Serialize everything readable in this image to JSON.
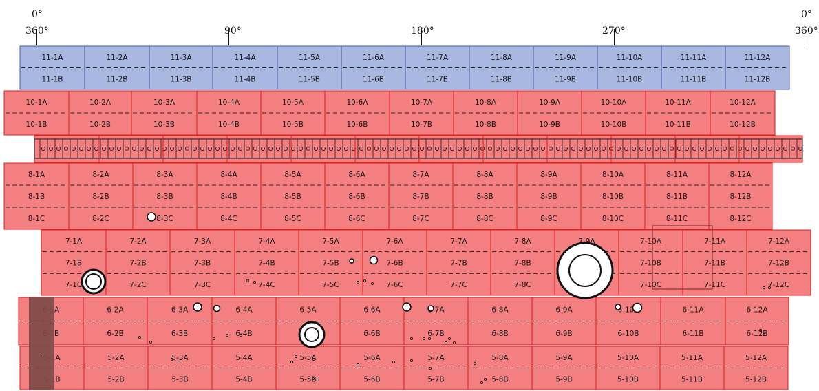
{
  "angle_labels": [
    "0°",
    "360°",
    "90°",
    "180°",
    "270°",
    "0°",
    "360°"
  ],
  "colors": {
    "blue_fill": "#a8b8e0",
    "blue_border": "#4a5aa0",
    "red_fill": "#f47f80",
    "red_border": "#e01f1f",
    "dark_band": "#7d4a46",
    "text": "#1a1a1a"
  },
  "tiers": [
    {
      "id": "11",
      "cells": [
        {
          "labels": [
            "11-1A",
            "11-1B"
          ]
        },
        {
          "labels": [
            "11-2A",
            "11-2B"
          ]
        },
        {
          "labels": [
            "11-3A",
            "11-3B"
          ]
        },
        {
          "labels": [
            "11-4A",
            "11-4B"
          ]
        },
        {
          "labels": [
            "11-5A",
            "11-5B"
          ]
        },
        {
          "labels": [
            "11-6A",
            "11-6B"
          ]
        },
        {
          "labels": [
            "11-7A",
            "11-7B"
          ]
        },
        {
          "labels": [
            "11-8A",
            "11-8B"
          ]
        },
        {
          "labels": [
            "11-9A",
            "11-9B"
          ]
        },
        {
          "labels": [
            "11-10A",
            "11-10B"
          ]
        },
        {
          "labels": [
            "11-11A",
            "11-11B"
          ]
        },
        {
          "labels": [
            "11-12A",
            "11-12B"
          ]
        }
      ]
    },
    {
      "id": "10",
      "cells": [
        {
          "labels": [
            "10-1A",
            "10-1B"
          ]
        },
        {
          "labels": [
            "10-2A",
            "10-2B"
          ]
        },
        {
          "labels": [
            "10-3A",
            "10-3B"
          ]
        },
        {
          "labels": [
            "10-4A",
            "10-4B"
          ]
        },
        {
          "labels": [
            "10-5A",
            "10-5B"
          ]
        },
        {
          "labels": [
            "10-6A",
            "10-6B"
          ]
        },
        {
          "labels": [
            "10-7A",
            "10-7B"
          ]
        },
        {
          "labels": [
            "10-8A",
            "10-8B"
          ]
        },
        {
          "labels": [
            "10-9A",
            "10-9B"
          ]
        },
        {
          "labels": [
            "10-10A",
            "10-10B"
          ]
        },
        {
          "labels": [
            "10-11A",
            "10-11B"
          ]
        },
        {
          "labels": [
            "10-12A",
            "10-12B"
          ]
        }
      ]
    },
    {
      "id": "8",
      "cells": [
        {
          "labels": [
            "8-1A",
            "8-1B",
            "8-1C"
          ]
        },
        {
          "labels": [
            "8-2A",
            "8-2B",
            "8-2C"
          ]
        },
        {
          "labels": [
            "8-3A",
            "8-3B",
            "8-3C"
          ]
        },
        {
          "labels": [
            "8-4A",
            "8-4B",
            "8-4C"
          ]
        },
        {
          "labels": [
            "8-5A",
            "8-5B",
            "8-5C"
          ]
        },
        {
          "labels": [
            "8-6A",
            "8-6B",
            "8-6C"
          ]
        },
        {
          "labels": [
            "8-7A",
            "8-7B",
            "8-7C"
          ]
        },
        {
          "labels": [
            "8-8A",
            "8-8B",
            "8-8C"
          ]
        },
        {
          "labels": [
            "8-9A",
            "8-9B",
            "8-9C"
          ]
        },
        {
          "labels": [
            "8-10A",
            "8-10B",
            "8-10C"
          ]
        },
        {
          "labels": [
            "8-11A",
            "8-11B",
            "8-11C"
          ]
        },
        {
          "labels": [
            "8-12A",
            "8-12B",
            "8-12C"
          ]
        }
      ]
    },
    {
      "id": "7",
      "cells": [
        {
          "labels": [
            "7-1A",
            "7-1B",
            "7-1C"
          ]
        },
        {
          "labels": [
            "7-2A",
            "7-2B",
            "7-2C"
          ]
        },
        {
          "labels": [
            "7-3A",
            "7-3B",
            "7-3C"
          ]
        },
        {
          "labels": [
            "7-4A",
            "7-4B",
            "7-4C"
          ]
        },
        {
          "labels": [
            "7-5A",
            "7-5B",
            "7-5C"
          ]
        },
        {
          "labels": [
            "7-6A",
            "7-6B",
            "7-6C"
          ]
        },
        {
          "labels": [
            "7-7A",
            "7-7B",
            "7-7C"
          ]
        },
        {
          "labels": [
            "7-8A",
            "7-8B",
            "7-8C"
          ]
        },
        {
          "labels": [
            "7-9A",
            "",
            ""
          ]
        },
        {
          "labels": [
            "7-10A",
            "7-10B",
            "7-10C"
          ]
        },
        {
          "labels": [
            "7-11A",
            "7-11B",
            "7-11C"
          ]
        },
        {
          "labels": [
            "7-12A",
            "7-12B",
            "7-12C"
          ]
        }
      ]
    },
    {
      "id": "6",
      "cells": [
        {
          "labels": [
            "6-1A",
            "6-1B"
          ]
        },
        {
          "labels": [
            "6-2A",
            "6-2B"
          ]
        },
        {
          "labels": [
            "6-3A",
            "6-3B"
          ]
        },
        {
          "labels": [
            "6-4A",
            "6-4B"
          ]
        },
        {
          "labels": [
            "6-5A",
            "6"
          ]
        },
        {
          "labels": [
            "6-6A",
            "6-6B"
          ]
        },
        {
          "labels": [
            "6-7A",
            "6-7B"
          ]
        },
        {
          "labels": [
            "6-8A",
            "6-8B"
          ]
        },
        {
          "labels": [
            "6-9A",
            "6-9B"
          ]
        },
        {
          "labels": [
            "6-10A",
            "6-10B"
          ]
        },
        {
          "labels": [
            "6-11A",
            "6-11B"
          ]
        },
        {
          "labels": [
            "6-12A",
            "6-12B"
          ]
        }
      ]
    },
    {
      "id": "5",
      "cells": [
        {
          "labels": [
            "5-1A",
            "5-1B"
          ]
        },
        {
          "labels": [
            "5-2A",
            "5-2B"
          ]
        },
        {
          "labels": [
            "5-3A",
            "5-3B"
          ]
        },
        {
          "labels": [
            "5-4A",
            "5-4B"
          ]
        },
        {
          "labels": [
            "5-5A",
            "5-5B"
          ]
        },
        {
          "labels": [
            "5-6A",
            "5-6B"
          ]
        },
        {
          "labels": [
            "5-7A",
            "5-7B"
          ]
        },
        {
          "labels": [
            "5-8A",
            "5-8B"
          ]
        },
        {
          "labels": [
            "5-9A",
            "5-9B"
          ]
        },
        {
          "labels": [
            "5-10A",
            "5-10B"
          ]
        },
        {
          "labels": [
            "5-11A",
            "5-11B"
          ]
        },
        {
          "labels": [
            "5-12A",
            "5-12B"
          ]
        }
      ]
    }
  ]
}
